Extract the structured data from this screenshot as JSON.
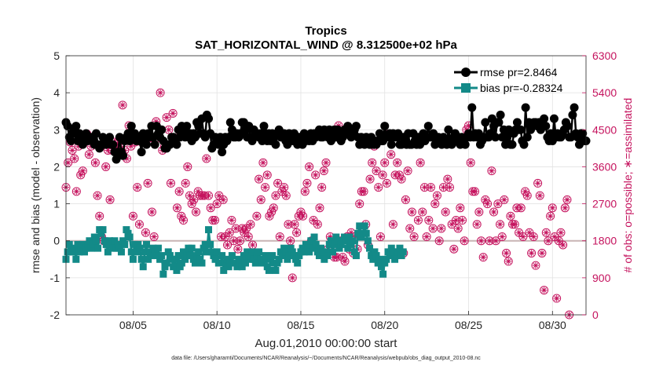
{
  "chart_data": {
    "type": "line",
    "title": "Tropics",
    "subtitle": "SAT_HORIZONTAL_WIND @ 8.312500e+02 hPa",
    "xlabel": "Aug.01,2010 00:00:00 start",
    "ylabel_left": "rmse and bias (model - observation)",
    "ylabel_right": "# of obs: o=possible; ∗=assimilated",
    "footnote": "data file: /Users/gharamti/Documents/NCAR/Reanalysis/~/Documents/NCAR/Reanalysis/webpub/obs_diag_output_2010-08.nc",
    "xlim": [
      1,
      32
    ],
    "ylim_left": [
      -2,
      5
    ],
    "ylim_right": [
      0,
      6300
    ],
    "x_ticks": [
      5,
      10,
      15,
      20,
      25,
      30
    ],
    "x_tick_labels": [
      "08/05",
      "08/10",
      "08/15",
      "08/20",
      "08/25",
      "08/30"
    ],
    "y_ticks_left": [
      "-2",
      "-1",
      "0",
      "1",
      "2",
      "3",
      "4",
      "5"
    ],
    "y_ticks_right": [
      "0",
      "900",
      "1800",
      "2700",
      "3600",
      "4500",
      "5400",
      "6300"
    ],
    "grid": true,
    "legend_position": "top-right",
    "colors": {
      "rmse": "#000000",
      "bias": "#138a88",
      "obs": "#c5135e",
      "zero_line": "#c8b4b4",
      "grid": "#e2e2e2"
    },
    "series": [
      {
        "name": "rmse pr=2.8464",
        "axis": "left",
        "marker": "circle",
        "values": [
          3.2,
          3.1,
          2.8,
          2.7,
          3.0,
          2.9,
          3.1,
          2.7,
          2.9,
          2.8,
          2.6,
          2.8,
          2.9,
          2.7,
          2.8,
          2.8,
          2.7,
          2.6,
          2.9,
          2.6,
          2.5,
          2.6,
          2.8,
          2.6,
          2.6,
          2.7,
          2.8,
          2.6,
          2.6,
          2.4,
          2.2,
          2.4,
          2.8,
          2.4,
          2.3,
          2.7,
          2.8,
          2.9,
          2.7,
          3.1,
          2.8,
          2.9,
          2.7,
          2.8,
          2.7,
          2.4,
          2.9,
          2.8,
          2.6,
          2.9,
          2.8,
          3.1,
          2.8,
          2.6,
          3.1,
          2.9,
          2.8,
          3.0,
          2.7,
          2.5,
          2.5,
          2.6,
          2.6,
          2.8,
          2.8,
          2.7,
          2.6,
          3.0,
          2.8,
          3.1,
          3.0,
          2.8,
          3.1,
          2.8,
          2.9,
          2.7,
          2.9,
          2.8,
          3.2,
          3.1,
          2.9,
          3.3,
          2.9,
          2.8,
          3.4,
          3.3,
          2.9,
          2.5,
          2.6,
          2.8,
          2.7,
          2.6,
          2.8,
          2.4,
          2.6,
          2.8,
          2.7,
          2.8,
          3.2,
          3.0,
          2.8,
          2.8,
          2.9,
          2.8,
          2.9,
          3.2,
          3.2,
          3.0,
          2.8,
          3.1,
          2.8,
          2.7,
          3.0,
          2.9,
          2.9,
          2.8,
          2.9,
          2.7,
          3.1,
          2.9,
          2.7,
          2.9,
          2.7,
          2.9,
          2.8,
          2.6,
          2.9,
          3.0,
          2.8,
          2.8,
          2.9,
          2.7,
          2.6,
          2.9,
          2.8,
          2.7,
          2.9,
          2.8,
          2.6,
          2.8,
          2.7,
          2.6,
          2.9,
          2.7,
          2.8,
          2.7,
          2.9,
          2.7,
          2.9,
          2.8,
          2.9,
          3.0,
          2.8,
          2.8,
          3.0,
          2.9,
          2.8,
          3.0,
          2.7,
          2.9,
          3.0,
          2.8,
          3.0,
          2.9,
          2.7,
          2.8,
          3.0,
          2.9,
          3.1,
          2.9,
          2.8,
          2.9,
          3.0,
          3.1,
          2.8,
          2.6,
          2.8,
          2.7,
          2.6,
          2.8,
          2.7,
          2.6,
          2.8,
          2.6,
          2.7,
          2.6,
          2.7,
          2.9,
          2.7,
          2.7,
          3.1,
          2.8,
          2.8,
          2.9,
          2.6,
          2.9,
          2.8,
          2.8,
          2.9,
          2.6,
          2.6,
          2.8,
          2.7,
          2.6,
          2.9,
          2.6,
          2.6,
          2.9,
          2.7,
          2.6,
          2.8,
          2.6,
          2.8,
          2.9,
          2.7,
          2.8,
          3.1,
          2.8,
          2.8,
          2.9,
          2.6,
          2.8,
          2.8,
          2.7,
          2.6,
          2.8,
          2.7,
          2.6,
          3.0,
          2.7,
          2.6,
          2.8,
          2.9,
          2.7,
          2.8,
          2.6,
          2.8,
          2.7,
          2.6,
          2.8,
          2.9,
          2.8,
          3.6,
          2.8,
          2.9,
          2.8,
          2.9,
          2.6,
          2.7,
          2.8,
          3.2,
          2.8,
          2.8,
          2.9,
          3.3,
          3.1,
          2.8,
          3.2,
          3.2,
          3.4,
          2.8,
          3.0,
          2.6,
          2.8,
          3.0,
          2.6,
          2.6,
          2.9,
          3.0,
          3.2,
          3.0,
          3.0,
          2.7,
          2.6,
          3.6,
          2.8,
          3.2,
          3.0,
          3.1,
          3.2,
          3.2,
          3.1,
          3.2,
          3.0,
          3.1,
          3.3,
          3.1,
          2.8,
          2.7,
          2.9,
          2.7,
          3.3,
          2.8,
          2.9,
          2.8,
          2.8,
          2.9,
          3.0,
          3.2,
          3.1,
          2.8,
          2.8,
          3.4,
          3.6,
          2.9,
          2.8,
          2.6,
          2.9,
          2.9,
          2.7,
          2.7,
          2.9,
          2.6
        ],
        "values_note": "twice-daily rmse readings",
        "x_start": 1.0,
        "x_step": 0.1
      },
      {
        "name": "bias pr=-0.28324",
        "axis": "left",
        "marker": "square",
        "values": [
          -0.5,
          -0.3,
          -0.1,
          -0.3,
          -0.3,
          -0.2,
          -0.5,
          -0.1,
          -0.3,
          -0.2,
          -0.1,
          -0.3,
          -0.2,
          -0.1,
          0.0,
          -0.2,
          -0.1,
          0.1,
          0.0,
          -0.2,
          0.3,
          0.2,
          0.3,
          0.0,
          -0.1,
          -0.3,
          0.0,
          -0.1,
          -0.2,
          0.0,
          -0.2,
          -0.1,
          -0.2,
          -0.3,
          0.0,
          -0.1,
          0.3,
          0.2,
          0.1,
          -0.3,
          -0.5,
          -0.1,
          -0.3,
          -0.1,
          -0.2,
          -0.5,
          -0.7,
          -0.3,
          -0.1,
          -0.5,
          -0.3,
          -0.4,
          -0.2,
          -0.3,
          -0.4,
          -0.2,
          -0.5,
          -0.4,
          -0.9,
          -0.7,
          -0.6,
          -0.3,
          -0.4,
          -0.5,
          -0.7,
          -0.5,
          -0.8,
          -0.4,
          -0.7,
          -0.6,
          -0.3,
          -0.5,
          -0.4,
          -0.2,
          -0.4,
          -0.2,
          -0.5,
          -0.6,
          -0.4,
          -0.3,
          -0.5,
          -0.6,
          -0.2,
          -0.1,
          -0.3,
          0.3,
          -0.1,
          -0.3,
          -0.4,
          -0.5,
          -0.3,
          -0.6,
          -0.6,
          -0.4,
          -0.8,
          -0.6,
          -0.5,
          -0.7,
          -0.6,
          -0.4,
          -0.6,
          -0.6,
          -0.7,
          -0.5,
          -0.6,
          -0.7,
          -0.4,
          -0.6,
          -0.3,
          -0.5,
          -0.4,
          -0.3,
          -0.5,
          -0.6,
          -0.4,
          -0.3,
          -0.5,
          -0.6,
          -0.5,
          -0.4,
          -0.7,
          -0.8,
          -0.5,
          -0.4,
          -0.6,
          -0.8,
          -0.6,
          -0.5,
          -0.3,
          -0.4,
          -0.2,
          -0.3,
          -0.5,
          -0.4,
          -0.2,
          -0.3,
          -0.4,
          -0.5,
          -0.6,
          -0.4,
          -0.3,
          -0.2,
          -0.3,
          -0.1,
          -0.2,
          -0.3,
          0.0,
          -0.2,
          0.1,
          -0.1,
          -0.3,
          -0.4,
          -0.2,
          -0.3,
          -0.5,
          -0.3,
          -0.4,
          -0.1,
          0.0,
          -0.3,
          -0.1,
          0.1,
          0.0,
          -0.2,
          -0.1,
          0.0,
          0.1,
          0.0,
          -0.2,
          0.1,
          -0.1,
          0.0,
          -0.3,
          -0.4,
          0.2,
          0.4,
          0.1,
          0.2,
          0.4,
          0.2,
          0.0,
          -0.2,
          -0.4,
          -0.5,
          -0.3,
          -0.4,
          -0.6,
          -0.5,
          -0.7,
          -0.9,
          -0.6,
          -0.5,
          -0.3,
          -0.4,
          -0.2,
          -0.3,
          -0.5,
          -0.4,
          -0.3,
          -0.2,
          -0.4,
          -0.3
        ],
        "x_start": 1.0,
        "x_step": 0.1
      }
    ],
    "obs_points": {
      "axis": "right",
      "marker": "circle-star",
      "possible": [
        3100,
        3700,
        4200,
        4000,
        3800,
        3000,
        4100,
        3400,
        3500,
        4300,
        4400,
        3900,
        4100,
        4300,
        3700,
        2900,
        2400,
        1900,
        1800,
        3600,
        4000,
        2800,
        4000,
        4200,
        4100,
        4200,
        4100,
        5100,
        4000,
        3800,
        4600,
        4100,
        2400,
        4200,
        3100,
        2200,
        4200,
        4200,
        2000,
        3200,
        4300,
        2500,
        1900,
        4700,
        4300,
        5400,
        4000,
        4100,
        4800,
        4500,
        3200,
        4900,
        4300,
        2600,
        3000,
        2400,
        2300,
        3200,
        3600,
        2900,
        2700,
        2800,
        2500,
        3000,
        2900,
        2900,
        2900,
        3800,
        2900,
        2600,
        2300,
        2300,
        2700,
        2900,
        1900,
        2800,
        1900,
        1700,
        2000,
        2300,
        1800,
        2100,
        1600,
        1800,
        2100,
        2000,
        2100,
        1900,
        2200,
        1700,
        1500,
        2400,
        3300,
        2800,
        3700,
        3100,
        3400,
        2400,
        2500,
        2600,
        2900,
        3200,
        1900,
        3000,
        3100,
        2900,
        2200,
        1800,
        900,
        2200,
        2000,
        2400,
        2500,
        2400,
        3000,
        3200,
        3600,
        1800,
        2300,
        3400,
        2200,
        2600,
        3100,
        3500,
        3700,
        1600,
        1900,
        1600,
        1400,
        1400,
        4600,
        1800,
        1400,
        1300,
        1900,
        1600,
        2000,
        1500,
        1900,
        1600,
        2700,
        3000,
        3000,
        2200,
        1700,
        3300,
        3700,
        4100,
        3500,
        3100,
        1900,
        3400,
        3700,
        3200,
        4400,
        3900,
        2200,
        3400,
        3700,
        3400,
        3300,
        1500,
        2800,
        3500,
        2100,
        2500,
        1900,
        4300,
        2300,
        3700,
        2500,
        3100,
        1900,
        2300,
        3100,
        2100,
        2700,
        2900,
        1800,
        2100,
        3100,
        2500,
        3300,
        3100,
        2200,
        1600,
        2300,
        2100,
        2600,
        2300,
        1800,
        4500,
        4600,
        3700,
        3000,
        3000,
        2200,
        2500,
        1800,
        1400,
        2800,
        2700,
        1800,
        3500,
        2500,
        1800,
        2700,
        2200,
        1900,
        2800,
        1500,
        1300,
        2400,
        2200,
        2200,
        2600,
        2000,
        2600,
        1900,
        3000,
        2900,
        2000,
        1500,
        1900,
        1200,
        3200,
        2900,
        1500,
        600,
        2000,
        1800,
        2400,
        2600,
        1900,
        400,
        1800,
        2000,
        1700,
        2600,
        2800,
        0
      ],
      "possible_note": "counts of possible observations, one per marker",
      "x_start": 1.0,
      "x_step": 0.125
    },
    "annotations": []
  }
}
